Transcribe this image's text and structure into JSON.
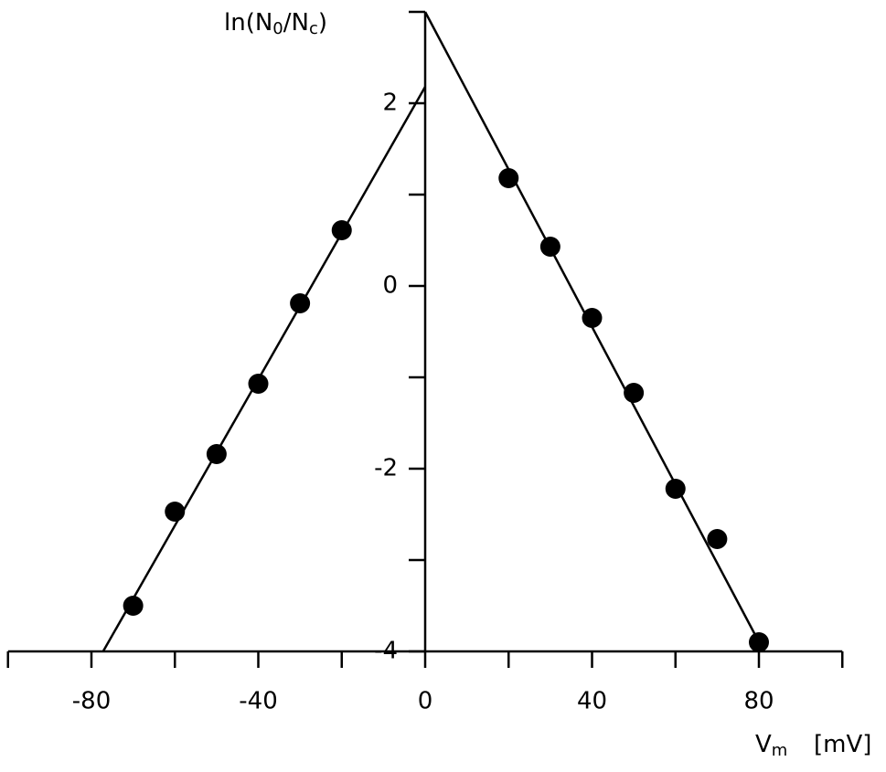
{
  "chart_data": {
    "type": "scatter",
    "y_label_parts": [
      "ln(N",
      "0",
      "/N",
      "c",
      ")"
    ],
    "x_label_parts": [
      "V",
      "m",
      "[mV]"
    ],
    "xlim": [
      -100,
      100
    ],
    "ylim": [
      -4,
      3
    ],
    "xticks": [
      -80,
      -40,
      0,
      40,
      80
    ],
    "xticks_minor": [
      -100,
      -60,
      -20,
      20,
      60,
      100
    ],
    "yticks": [
      -4,
      -2,
      0,
      2
    ],
    "yticks_minor": [
      -3,
      -1,
      1,
      3
    ],
    "series": [
      {
        "color": "#000000",
        "x": [
          -70,
          -60,
          -50,
          -40,
          -30,
          -20
        ],
        "values": [
          -3.5,
          -2.47,
          -1.84,
          -1.07,
          -0.19,
          0.61
        ]
      },
      {
        "color": "#000000",
        "x": [
          20,
          30,
          40,
          50,
          60,
          70,
          80
        ],
        "values": [
          1.18,
          0.43,
          -0.35,
          -1.17,
          -2.22,
          -2.77,
          -3.9
        ]
      }
    ],
    "fit_lines": [
      {
        "color": "#000000",
        "x": [
          -77.2,
          0
        ],
        "values": [
          -4,
          2.18
        ]
      },
      {
        "color": "#000000",
        "x": [
          0,
          81.2
        ],
        "values": [
          3,
          -4
        ]
      }
    ]
  }
}
